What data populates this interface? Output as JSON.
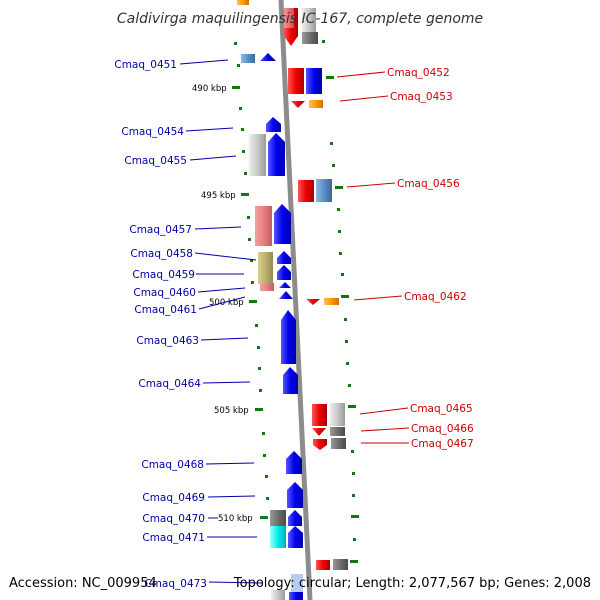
{
  "title": "Caldivirga maquilingensis IC-167, complete genome",
  "footer": {
    "accession": "Accession: NC_009954",
    "topology": "Topology: circular; Length: 2,077,567 bp; Genes: 2,008"
  },
  "colors": {
    "backbone": "#8c8c8c",
    "plus_label": "#0000aa",
    "minus_label": "#cc0000",
    "tick": "#117711"
  },
  "scale_labels": [
    "490 kbp",
    "495 kbp",
    "500 kbp",
    "505 kbp",
    "510 kbp"
  ],
  "genes_left": [
    {
      "name": "Cmaq_0451"
    },
    {
      "name": "Cmaq_0454"
    },
    {
      "name": "Cmaq_0455"
    },
    {
      "name": "Cmaq_0457"
    },
    {
      "name": "Cmaq_0458"
    },
    {
      "name": "Cmaq_0459"
    },
    {
      "name": "Cmaq_0460"
    },
    {
      "name": "Cmaq_0461"
    },
    {
      "name": "Cmaq_0463"
    },
    {
      "name": "Cmaq_0464"
    },
    {
      "name": "Cmaq_0468"
    },
    {
      "name": "Cmaq_0469"
    },
    {
      "name": "Cmaq_0470"
    },
    {
      "name": "Cmaq_0471"
    },
    {
      "name": "Cmaq_0473"
    }
  ],
  "genes_right": [
    {
      "name": "Cmaq_0452"
    },
    {
      "name": "Cmaq_0453"
    },
    {
      "name": "Cmaq_0456"
    },
    {
      "name": "Cmaq_0462"
    },
    {
      "name": "Cmaq_0465"
    },
    {
      "name": "Cmaq_0466"
    },
    {
      "name": "Cmaq_0467"
    }
  ]
}
